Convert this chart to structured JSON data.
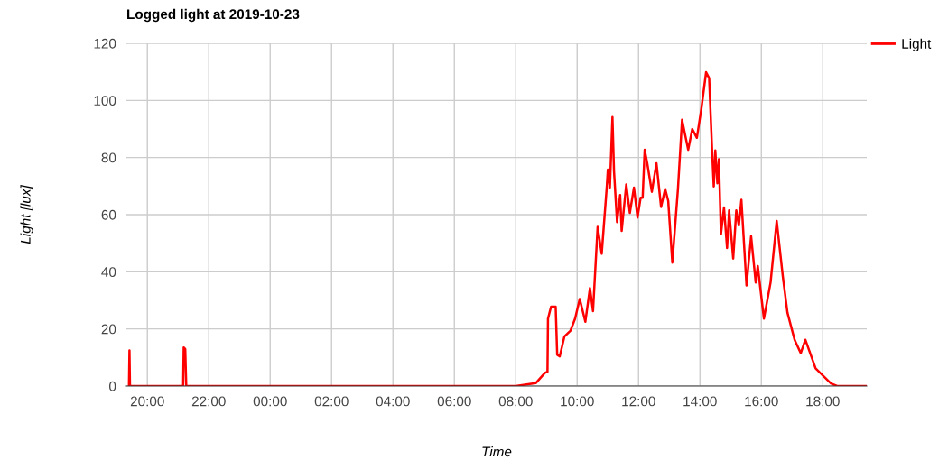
{
  "chart_data": {
    "type": "line",
    "title": "Logged light at 2019-10-23",
    "xlabel": "Time",
    "ylabel": "Light [lux]",
    "x": [
      "2019-10-22T19:24",
      "2019-10-22T19:25",
      "2019-10-22T19:26",
      "2019-10-22T21:10",
      "2019-10-22T21:11",
      "2019-10-22T21:14",
      "2019-10-22T21:16",
      "2019-10-23T08:00",
      "2019-10-23T08:39",
      "2019-10-23T08:57",
      "2019-10-23T09:02",
      "2019-10-23T09:03",
      "2019-10-23T09:09",
      "2019-10-23T09:18",
      "2019-10-23T09:21",
      "2019-10-23T09:26",
      "2019-10-23T09:35",
      "2019-10-23T09:47",
      "2019-10-23T09:56",
      "2019-10-23T10:05",
      "2019-10-23T10:16",
      "2019-10-23T10:25",
      "2019-10-23T10:31",
      "2019-10-23T10:40",
      "2019-10-23T10:48",
      "2019-10-23T10:58",
      "2019-10-23T11:00",
      "2019-10-23T11:04",
      "2019-10-23T11:09",
      "2019-10-23T11:12",
      "2019-10-23T11:18",
      "2019-10-23T11:24",
      "2019-10-23T11:27",
      "2019-10-23T11:36",
      "2019-10-23T11:43",
      "2019-10-23T11:51",
      "2019-10-23T11:58",
      "2019-10-23T12:04",
      "2019-10-23T12:08",
      "2019-10-23T12:12",
      "2019-10-23T12:17",
      "2019-10-23T12:26",
      "2019-10-23T12:35",
      "2019-10-23T12:44",
      "2019-10-23T12:52",
      "2019-10-23T12:58",
      "2019-10-23T13:06",
      "2019-10-23T13:17",
      "2019-10-23T13:25",
      "2019-10-23T13:37",
      "2019-10-23T13:45",
      "2019-10-23T13:54",
      "2019-10-23T14:03",
      "2019-10-23T14:12",
      "2019-10-23T14:18",
      "2019-10-23T14:24",
      "2019-10-23T14:27",
      "2019-10-23T14:30",
      "2019-10-23T14:34",
      "2019-10-23T14:37",
      "2019-10-23T14:41",
      "2019-10-23T14:47",
      "2019-10-23T14:53",
      "2019-10-23T14:57",
      "2019-10-23T15:05",
      "2019-10-23T15:11",
      "2019-10-23T15:16",
      "2019-10-23T15:21",
      "2019-10-23T15:31",
      "2019-10-23T15:40",
      "2019-10-23T15:49",
      "2019-10-23T15:53",
      "2019-10-23T16:05",
      "2019-10-23T16:18",
      "2019-10-23T16:30",
      "2019-10-23T16:42",
      "2019-10-23T16:51",
      "2019-10-23T17:05",
      "2019-10-23T17:17",
      "2019-10-23T17:26",
      "2019-10-23T17:46",
      "2019-10-23T18:16",
      "2019-10-23T18:28",
      "2019-10-23T19:26"
    ],
    "series": [
      {
        "name": "Light",
        "color": "#ff0000",
        "values": [
          0,
          12.5,
          0,
          0,
          13.5,
          13,
          0,
          0,
          1,
          4.6,
          5,
          23.6,
          27.8,
          27.8,
          10.9,
          10.4,
          17.3,
          19.4,
          23.6,
          30.5,
          22.5,
          34.3,
          26.2,
          55.7,
          46.3,
          70,
          75.8,
          69.5,
          94.2,
          75.3,
          57.4,
          66.9,
          54.3,
          70.6,
          60.6,
          69.5,
          59,
          65.9,
          65.9,
          82.7,
          78,
          68,
          78,
          62.7,
          69,
          64.8,
          43.2,
          69,
          93.2,
          82.7,
          90,
          86.9,
          97.4,
          109.9,
          107.8,
          81.5,
          69.9,
          82.5,
          71,
          79.4,
          53.1,
          62.5,
          48.3,
          61.5,
          44.6,
          61.5,
          56.2,
          65.2,
          35.2,
          52.5,
          36.2,
          42,
          23.6,
          36.2,
          57.8,
          38.3,
          25.7,
          16.2,
          11.5,
          16.2,
          6.2,
          0.9,
          0,
          0
        ]
      }
    ],
    "xlim": [
      "2019-10-22T19:19",
      "2019-10-23T19:26"
    ],
    "xticks": [
      {
        "value": "2019-10-22T20:00",
        "label": "20:00"
      },
      {
        "value": "2019-10-22T22:00",
        "label": "22:00"
      },
      {
        "value": "2019-10-23T00:00",
        "label": "00:00"
      },
      {
        "value": "2019-10-23T02:00",
        "label": "02:00"
      },
      {
        "value": "2019-10-23T04:00",
        "label": "04:00"
      },
      {
        "value": "2019-10-23T06:00",
        "label": "06:00"
      },
      {
        "value": "2019-10-23T08:00",
        "label": "08:00"
      },
      {
        "value": "2019-10-23T10:00",
        "label": "10:00"
      },
      {
        "value": "2019-10-23T12:00",
        "label": "12:00"
      },
      {
        "value": "2019-10-23T14:00",
        "label": "14:00"
      },
      {
        "value": "2019-10-23T16:00",
        "label": "16:00"
      },
      {
        "value": "2019-10-23T18:00",
        "label": "18:00"
      }
    ],
    "ylim": [
      0,
      120
    ],
    "yticks": [
      0,
      20,
      40,
      60,
      80,
      100,
      120
    ],
    "grid": true,
    "legend": "top right",
    "marker": "none",
    "line_style": "solid"
  }
}
